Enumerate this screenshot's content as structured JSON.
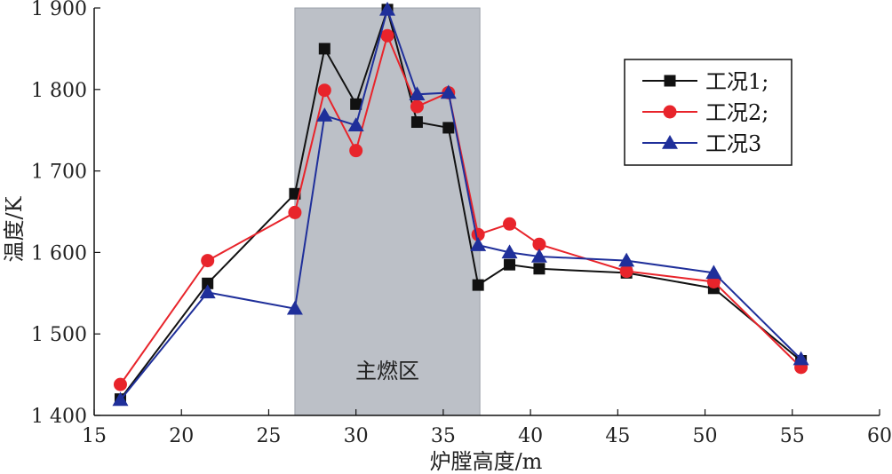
{
  "chart_data": {
    "type": "line",
    "xlabel": "炉膛高度/m",
    "ylabel": "温度/K",
    "xlim": [
      15,
      60
    ],
    "ylim": [
      1400,
      1900
    ],
    "xticks": [
      15,
      20,
      25,
      30,
      35,
      40,
      45,
      50,
      55,
      60
    ],
    "yticks": [
      1400,
      1500,
      1600,
      1700,
      1800,
      1900
    ],
    "xtick_labels": [
      "15",
      "20",
      "25",
      "30",
      "35",
      "40",
      "45",
      "50",
      "55",
      "60"
    ],
    "ytick_labels": [
      "1 400",
      "1 500",
      "1 600",
      "1 700",
      "1 800",
      "1 900"
    ],
    "grid": false,
    "legend_position": "top-right",
    "shaded_region": {
      "x_start": 26.5,
      "x_end": 37.1,
      "label": "主燃区",
      "color": "#bcc0c7"
    },
    "series": [
      {
        "name": "工况1;",
        "color": "#111111",
        "marker": "square",
        "x": [
          16.5,
          21.5,
          26.5,
          28.2,
          30.0,
          31.8,
          33.5,
          35.3,
          37.0,
          38.8,
          40.5,
          45.5,
          50.5,
          55.5
        ],
        "y": [
          1420,
          1562,
          1672,
          1850,
          1782,
          1898,
          1760,
          1753,
          1560,
          1585,
          1580,
          1575,
          1556,
          1467
        ]
      },
      {
        "name": "工况2;",
        "color": "#e8242b",
        "marker": "circle",
        "x": [
          16.5,
          21.5,
          26.5,
          28.2,
          30.0,
          31.8,
          33.5,
          35.3,
          37.0,
          38.8,
          40.5,
          45.5,
          50.5,
          55.5
        ],
        "y": [
          1438,
          1590,
          1649,
          1799,
          1725,
          1866,
          1779,
          1796,
          1622,
          1635,
          1610,
          1577,
          1564,
          1459
        ]
      },
      {
        "name": "工况3",
        "color": "#1f2f9a",
        "marker": "triangle",
        "x": [
          16.5,
          21.5,
          26.5,
          28.2,
          30.0,
          31.8,
          33.5,
          35.3,
          37.0,
          38.8,
          40.5,
          45.5,
          50.5,
          55.5
        ],
        "y": [
          1419,
          1551,
          1531,
          1768,
          1756,
          1898,
          1794,
          1796,
          1609,
          1600,
          1595,
          1590,
          1575,
          1469
        ]
      }
    ]
  }
}
